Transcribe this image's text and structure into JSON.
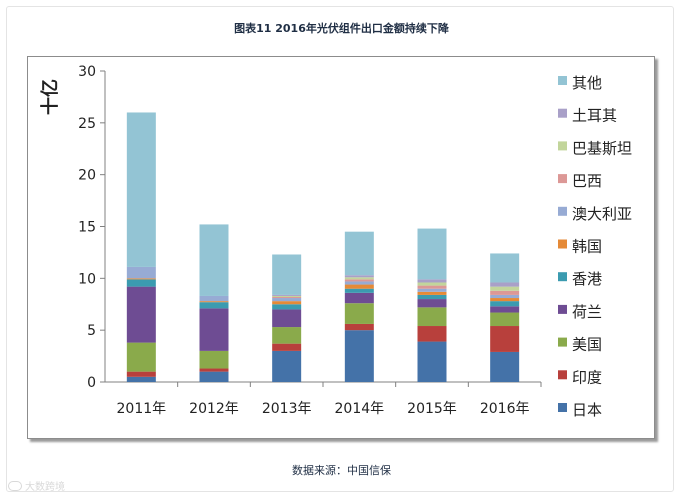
{
  "figure": {
    "title": "图表11  2016年光伏组件出口金额持续下降",
    "source": "数据来源：中国信保",
    "watermark": "大数跨境"
  },
  "chart_data": {
    "type": "bar",
    "stacked": true,
    "ylabel": "十亿",
    "ylim": [
      0,
      30
    ],
    "yticks": [
      0,
      5,
      10,
      15,
      20,
      25,
      30
    ],
    "grid": false,
    "legend_position": "right",
    "categories": [
      "2011年",
      "2012年",
      "2013年",
      "2014年",
      "2015年",
      "2016年"
    ],
    "series": [
      {
        "name": "日本",
        "color": "#4472a8",
        "values": [
          0.5,
          1.0,
          3.0,
          5.0,
          3.9,
          2.9
        ]
      },
      {
        "name": "印度",
        "color": "#b8403c",
        "values": [
          0.5,
          0.3,
          0.7,
          0.6,
          1.5,
          2.5
        ]
      },
      {
        "name": "美国",
        "color": "#8aaa4b",
        "values": [
          2.8,
          1.7,
          1.6,
          2.0,
          1.8,
          1.3
        ]
      },
      {
        "name": "荷兰",
        "color": "#6e4c93",
        "values": [
          5.4,
          4.1,
          1.7,
          1.0,
          0.8,
          0.6
        ]
      },
      {
        "name": "香港",
        "color": "#3b9bb0",
        "values": [
          0.7,
          0.6,
          0.5,
          0.4,
          0.4,
          0.5
        ]
      },
      {
        "name": "韩国",
        "color": "#e58a37",
        "values": [
          0.1,
          0.1,
          0.3,
          0.4,
          0.3,
          0.3
        ]
      },
      {
        "name": "澳大利亚",
        "color": "#97abd4",
        "values": [
          1.1,
          0.5,
          0.3,
          0.3,
          0.3,
          0.3
        ]
      },
      {
        "name": "巴西",
        "color": "#dc9896",
        "values": [
          0.0,
          0.0,
          0.1,
          0.2,
          0.3,
          0.4
        ]
      },
      {
        "name": "巴基斯坦",
        "color": "#c2d59b",
        "values": [
          0.0,
          0.0,
          0.1,
          0.2,
          0.3,
          0.4
        ]
      },
      {
        "name": "土耳其",
        "color": "#a9a0c8",
        "values": [
          0.0,
          0.0,
          0.1,
          0.2,
          0.3,
          0.4
        ]
      },
      {
        "name": "其他",
        "color": "#93c4d4",
        "values": [
          14.9,
          6.9,
          3.9,
          4.2,
          4.9,
          2.8
        ]
      }
    ]
  }
}
